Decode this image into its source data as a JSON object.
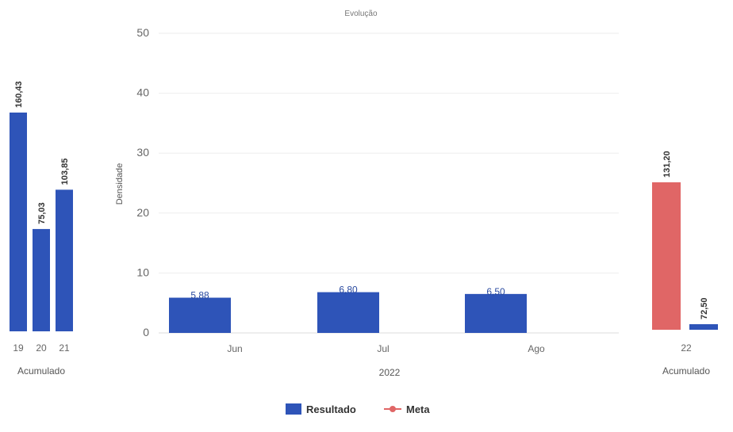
{
  "chart_data": [
    {
      "type": "bar",
      "categories": [
        "19",
        "20",
        "21"
      ],
      "values": [
        160.43,
        75.03,
        103.85
      ],
      "value_labels": [
        "160,43",
        "75,03",
        "103,85"
      ],
      "xlabel": "Acumulado",
      "colors": [
        "#2e54b8",
        "#2e54b8",
        "#2e54b8"
      ]
    },
    {
      "type": "bar",
      "title": "Evolução",
      "categories": [
        "Jun",
        "Jul",
        "Ago"
      ],
      "values": [
        5.88,
        6.8,
        6.5
      ],
      "value_labels": [
        "5,88",
        "6,80",
        "6,50"
      ],
      "xlabel": "2022",
      "ylabel": "Densidade",
      "ylim": [
        0,
        50
      ],
      "yticks": [
        "0",
        "10",
        "20",
        "30",
        "40",
        "50"
      ],
      "grid": true,
      "color": "#2e54b8"
    },
    {
      "type": "bar",
      "categories": [
        "22"
      ],
      "series": [
        {
          "name": "Meta",
          "values": [
            131.2
          ],
          "value_labels": [
            "131,20"
          ],
          "color": "#e06666"
        },
        {
          "name": "Resultado",
          "values": [
            72.5
          ],
          "value_labels": [
            "72,50"
          ],
          "color": "#2e54b8"
        }
      ],
      "xlabel": "Acumulado"
    }
  ],
  "legend": {
    "placement": "bottom-center",
    "items": [
      {
        "label": "Resultado",
        "color": "#2e54b8",
        "shape": "square"
      },
      {
        "label": "Meta",
        "color": "#e06666",
        "shape": "line-dot"
      }
    ]
  }
}
